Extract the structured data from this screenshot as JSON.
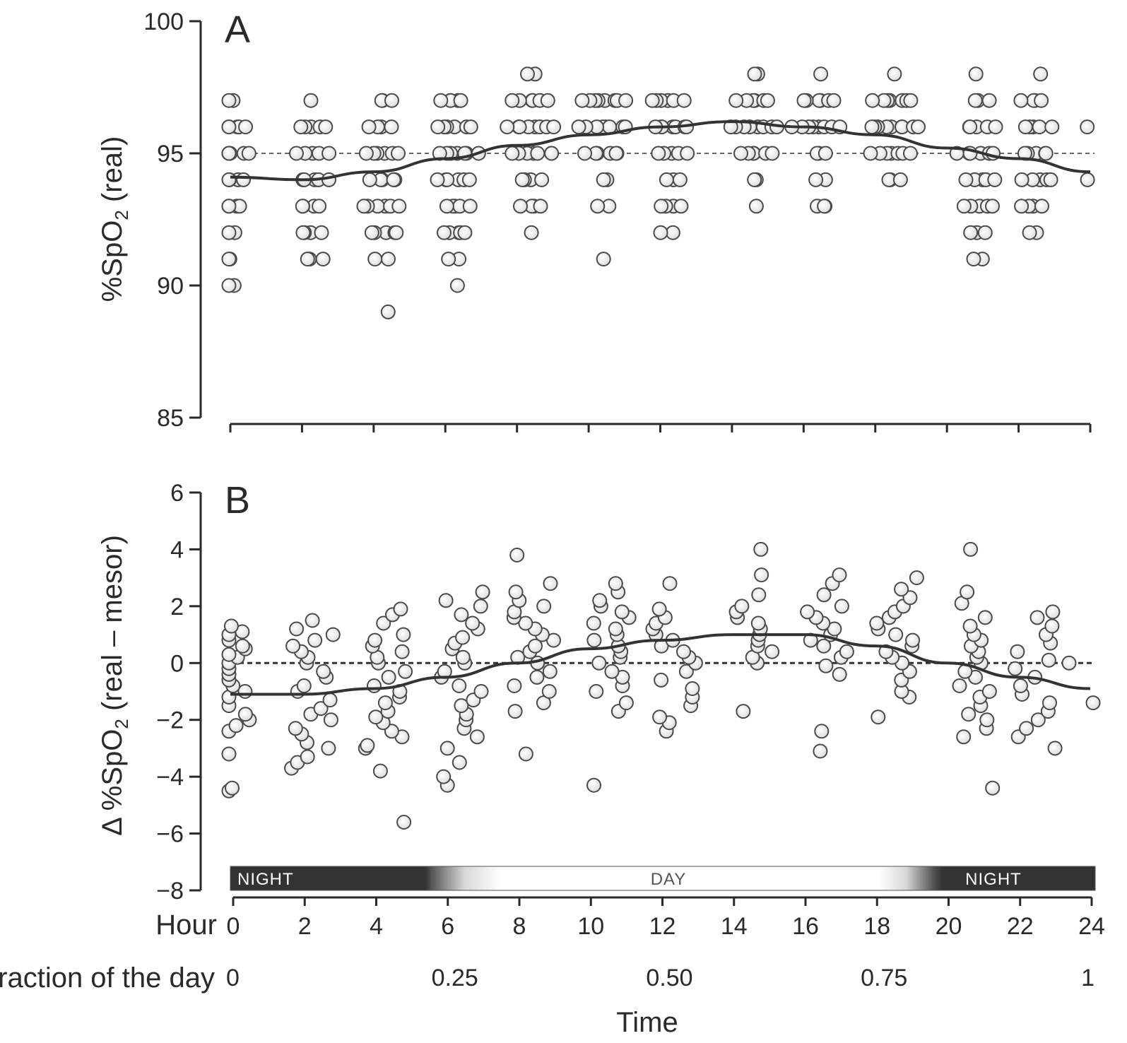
{
  "chart_data": [
    {
      "type": "scatter",
      "panel": "A",
      "ylabel_main": "%SpO",
      "ylabel_sub": "2",
      "ylabel_tail": " (real)",
      "ylim": [
        85,
        100
      ],
      "yticks": [
        85,
        90,
        95,
        100
      ],
      "xlim": [
        0,
        24
      ],
      "reference_line": 95,
      "fit_curve": {
        "x": [
          0,
          2,
          4,
          6,
          8,
          10,
          12,
          14,
          16,
          18,
          20,
          22,
          24
        ],
        "y": [
          94.1,
          94.0,
          94.3,
          94.8,
          95.3,
          95.7,
          96.0,
          96.2,
          96.0,
          95.7,
          95.2,
          94.8,
          94.3
        ]
      },
      "clusters": [
        {
          "x": 0.1,
          "values": [
            90,
            90,
            91,
            91,
            92,
            92,
            93,
            93,
            93,
            93,
            94,
            94,
            94,
            94,
            95,
            95,
            95,
            95,
            95,
            95,
            96,
            96,
            96,
            96,
            96,
            97,
            97
          ]
        },
        {
          "x": 2.3,
          "values": [
            91,
            91,
            91,
            92,
            92,
            92,
            92,
            93,
            93,
            93,
            93,
            94,
            94,
            94,
            94,
            94,
            95,
            95,
            95,
            95,
            95,
            96,
            96,
            96,
            96,
            96,
            97
          ]
        },
        {
          "x": 4.3,
          "values": [
            89,
            91,
            91,
            92,
            92,
            92,
            92,
            92,
            93,
            93,
            93,
            93,
            93,
            93,
            94,
            94,
            94,
            94,
            94,
            95,
            95,
            95,
            95,
            95,
            95,
            96,
            96,
            96,
            96,
            97,
            97,
            97
          ]
        },
        {
          "x": 6.3,
          "values": [
            90,
            91,
            91,
            92,
            92,
            92,
            92,
            92,
            93,
            93,
            93,
            93,
            93,
            94,
            94,
            94,
            94,
            94,
            94,
            95,
            95,
            95,
            95,
            95,
            95,
            95,
            96,
            96,
            96,
            96,
            96,
            96,
            97,
            97,
            97,
            97
          ]
        },
        {
          "x": 8.5,
          "values": [
            92,
            93,
            93,
            93,
            93,
            94,
            94,
            94,
            94,
            95,
            95,
            95,
            95,
            95,
            95,
            95,
            96,
            96,
            96,
            96,
            96,
            96,
            96,
            96,
            97,
            97,
            97,
            97,
            97,
            97,
            98,
            98
          ]
        },
        {
          "x": 10.5,
          "values": [
            91,
            93,
            93,
            94,
            94,
            95,
            95,
            95,
            95,
            95,
            95,
            96,
            96,
            96,
            96,
            96,
            96,
            96,
            96,
            97,
            97,
            97,
            97,
            97,
            97,
            97,
            97
          ]
        },
        {
          "x": 12.3,
          "values": [
            92,
            92,
            93,
            93,
            93,
            93,
            94,
            94,
            94,
            95,
            95,
            95,
            95,
            95,
            96,
            96,
            96,
            96,
            96,
            96,
            96,
            97,
            97,
            97,
            97,
            97,
            97
          ]
        },
        {
          "x": 14.7,
          "values": [
            93,
            94,
            94,
            95,
            95,
            95,
            95,
            95,
            95,
            96,
            96,
            96,
            96,
            96,
            96,
            96,
            96,
            97,
            97,
            97,
            97,
            97,
            97,
            98,
            98
          ]
        },
        {
          "x": 16.5,
          "values": [
            93,
            93,
            93,
            94,
            94,
            95,
            95,
            95,
            96,
            96,
            96,
            96,
            96,
            96,
            96,
            96,
            97,
            97,
            97,
            97,
            97,
            97,
            98
          ]
        },
        {
          "x": 18.5,
          "values": [
            94,
            94,
            94,
            95,
            95,
            95,
            95,
            95,
            95,
            95,
            96,
            96,
            96,
            96,
            96,
            96,
            96,
            96,
            96,
            97,
            97,
            97,
            97,
            97,
            97,
            97,
            98
          ]
        },
        {
          "x": 20.9,
          "values": [
            91,
            91,
            92,
            92,
            92,
            93,
            93,
            93,
            93,
            93,
            94,
            94,
            94,
            94,
            94,
            95,
            95,
            95,
            95,
            95,
            95,
            96,
            96,
            96,
            96,
            96,
            97,
            97,
            97,
            98
          ]
        },
        {
          "x": 22.5,
          "values": [
            92,
            92,
            93,
            93,
            93,
            93,
            94,
            94,
            94,
            94,
            94,
            95,
            95,
            95,
            95,
            95,
            96,
            96,
            96,
            96,
            96,
            97,
            97,
            97,
            97,
            98
          ]
        },
        {
          "x": 24,
          "values": [
            94,
            96
          ]
        }
      ]
    },
    {
      "type": "scatter",
      "panel": "B",
      "ylabel_main": "Δ %SpO",
      "ylabel_sub": "2",
      "ylabel_tail": " (real – mesor)",
      "ylim": [
        -8,
        6
      ],
      "yticks": [
        -8,
        -6,
        -4,
        -2,
        0,
        2,
        4,
        6
      ],
      "ytick_labels": [
        "−8",
        "−6",
        "−4",
        "−2",
        "0",
        "2",
        "4",
        "6"
      ],
      "xlim": [
        0,
        24
      ],
      "reference_line": 0,
      "fit_curve": {
        "x": [
          0,
          2,
          4,
          6,
          8,
          10,
          12,
          14,
          16,
          18,
          20,
          22,
          24
        ],
        "y": [
          -1.1,
          -1.1,
          -0.9,
          -0.5,
          0.0,
          0.5,
          0.8,
          1.0,
          1.0,
          0.6,
          0.0,
          -0.5,
          -0.9
        ]
      },
      "clusters": [
        {
          "x": 0.1,
          "values": [
            -4.5,
            -4.4,
            -3.2,
            -2.4,
            -2.2,
            -2.0,
            -1.8,
            -1.5,
            -1.2,
            -1.0,
            -0.8,
            -0.6,
            -0.4,
            -0.2,
            0.0,
            0.2,
            0.3,
            0.5,
            0.6,
            0.8,
            1.0,
            1.1,
            1.3
          ]
        },
        {
          "x": 2.3,
          "values": [
            -3.7,
            -3.5,
            -3.3,
            -3.0,
            -2.8,
            -2.5,
            -2.3,
            -2.0,
            -1.8,
            -1.6,
            -1.3,
            -1.0,
            -0.8,
            -0.5,
            -0.3,
            0.0,
            0.2,
            0.4,
            0.6,
            0.8,
            1.0,
            1.2,
            1.5
          ]
        },
        {
          "x": 4.3,
          "values": [
            -5.6,
            -3.8,
            -3.0,
            -2.9,
            -2.6,
            -2.4,
            -2.1,
            -1.9,
            -1.7,
            -1.4,
            -1.2,
            -1.0,
            -0.8,
            -0.5,
            -0.3,
            0.0,
            0.2,
            0.4,
            0.6,
            0.8,
            1.0,
            1.4,
            1.7,
            1.9
          ]
        },
        {
          "x": 6.5,
          "values": [
            -4.3,
            -4.0,
            -3.5,
            -3.0,
            -2.6,
            -2.3,
            -2.0,
            -1.8,
            -1.5,
            -1.3,
            -1.0,
            -0.8,
            -0.5,
            -0.3,
            0.0,
            0.2,
            0.5,
            0.7,
            0.9,
            1.2,
            1.4,
            1.7,
            2.0,
            2.2,
            2.5
          ]
        },
        {
          "x": 8.5,
          "values": [
            -3.2,
            -1.7,
            -1.4,
            -1.0,
            -0.8,
            -0.5,
            -0.3,
            0.0,
            0.2,
            0.4,
            0.6,
            0.8,
            1.0,
            1.2,
            1.4,
            1.6,
            1.8,
            2.0,
            2.2,
            2.5,
            2.8,
            3.8
          ]
        },
        {
          "x": 10.6,
          "values": [
            -4.3,
            -1.7,
            -1.4,
            -1.0,
            -0.8,
            -0.5,
            -0.3,
            0.0,
            0.2,
            0.4,
            0.6,
            0.8,
            1.0,
            1.2,
            1.4,
            1.6,
            1.8,
            2.0,
            2.2,
            2.5,
            2.8
          ]
        },
        {
          "x": 12.4,
          "values": [
            -2.4,
            -2.1,
            -1.9,
            -1.5,
            -1.2,
            -0.9,
            -0.6,
            -0.3,
            0.0,
            0.2,
            0.4,
            0.6,
            0.8,
            1.0,
            1.2,
            1.4,
            1.6,
            1.9,
            2.8
          ]
        },
        {
          "x": 14.6,
          "values": [
            -1.7,
            0.0,
            0.2,
            0.4,
            0.6,
            0.8,
            1.0,
            1.2,
            1.4,
            1.6,
            1.8,
            2.0,
            2.4,
            3.1,
            4.0
          ]
        },
        {
          "x": 16.6,
          "values": [
            -3.1,
            -2.4,
            -0.4,
            -0.1,
            0.2,
            0.4,
            0.6,
            0.8,
            1.0,
            1.2,
            1.4,
            1.6,
            1.8,
            2.0,
            2.4,
            2.8,
            3.1
          ]
        },
        {
          "x": 18.6,
          "values": [
            -1.9,
            -1.2,
            -1.0,
            -0.6,
            -0.3,
            0.0,
            0.2,
            0.4,
            0.6,
            0.8,
            1.0,
            1.2,
            1.4,
            1.6,
            1.8,
            2.0,
            2.3,
            2.6,
            3.0
          ]
        },
        {
          "x": 20.8,
          "values": [
            -4.4,
            -2.6,
            -2.3,
            -2.0,
            -1.8,
            -1.5,
            -1.2,
            -1.0,
            -0.8,
            -0.5,
            -0.3,
            0.0,
            0.2,
            0.4,
            0.6,
            0.8,
            1.0,
            1.3,
            1.6,
            2.1,
            2.5,
            4.0
          ]
        },
        {
          "x": 22.5,
          "values": [
            -3.0,
            -2.6,
            -2.3,
            -2.0,
            -1.7,
            -1.4,
            -1.1,
            -0.8,
            -0.5,
            -0.2,
            0.1,
            0.4,
            0.7,
            1.0,
            1.3,
            1.6,
            1.8
          ]
        },
        {
          "x": 24,
          "values": [
            -1.4,
            0.0
          ]
        }
      ]
    }
  ],
  "xaxis": {
    "hour_label": "Hour",
    "hour_ticks": [
      0,
      2,
      4,
      6,
      8,
      10,
      12,
      14,
      16,
      18,
      20,
      22,
      24
    ],
    "fraction_label": "Fraction of the day",
    "fraction_ticks": [
      {
        "hour": 0,
        "label": "0"
      },
      {
        "hour": 6,
        "label": "0.25"
      },
      {
        "hour": 12,
        "label": "0.50"
      },
      {
        "hour": 18,
        "label": "0.75"
      },
      {
        "hour": 24,
        "label": "1"
      }
    ],
    "title": "Time"
  },
  "daynight": {
    "night_left": "NIGHT",
    "day": "DAY",
    "night_right": "NIGHT",
    "dark_color": "#333333",
    "light_color": "#ffffff"
  },
  "colors": {
    "axis": "#2a2a2a",
    "marker_stroke": "#4a4a4a",
    "marker_fill": "#ffffff",
    "fit_line": "#333333"
  }
}
